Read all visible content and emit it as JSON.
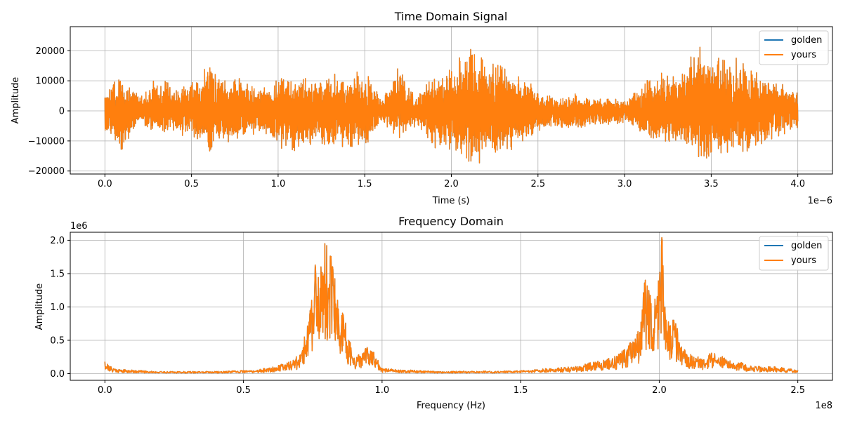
{
  "chart_data": [
    {
      "type": "line",
      "title": "Time Domain Signal",
      "xlabel": "Time (s)",
      "ylabel": "Amplitude",
      "x_offset_label": "1e−6",
      "xlim": [
        -0.2,
        4.2
      ],
      "ylim": [
        -21000,
        28000
      ],
      "grid": true,
      "legend_position": "top-right",
      "xticks": [
        0.0,
        0.5,
        1.0,
        1.5,
        2.0,
        2.5,
        3.0,
        3.5,
        4.0
      ],
      "xtick_labels": [
        "0.0",
        "0.5",
        "1.0",
        "1.5",
        "2.0",
        "2.5",
        "3.0",
        "3.5",
        "4.0"
      ],
      "yticks": [
        -20000,
        -10000,
        0,
        10000,
        20000
      ],
      "ytick_labels": [
        "−20000",
        "−10000",
        "0",
        "10000",
        "20000"
      ],
      "series": [
        {
          "name": "golden",
          "color": "#1f77b4"
        },
        {
          "name": "yours",
          "color": "#ff7f0e"
        }
      ],
      "envelope": {
        "x": [
          0.0,
          0.1,
          0.2,
          0.3,
          0.4,
          0.5,
          0.6,
          0.7,
          0.8,
          0.9,
          1.0,
          1.1,
          1.2,
          1.3,
          1.4,
          1.5,
          1.6,
          1.7,
          1.8,
          1.9,
          2.0,
          2.1,
          2.2,
          2.3,
          2.4,
          2.5,
          2.6,
          2.7,
          2.8,
          2.9,
          3.0,
          3.1,
          3.2,
          3.3,
          3.4,
          3.5,
          3.6,
          3.7,
          3.8,
          3.9,
          4.0
        ],
        "y_max": [
          7000,
          14000,
          5000,
          13000,
          8000,
          12000,
          16000,
          14000,
          12000,
          9000,
          11000,
          14000,
          11000,
          14000,
          12000,
          15000,
          4000,
          17000,
          5000,
          14000,
          14000,
          25500,
          17000,
          16000,
          12000,
          7000,
          5000,
          6000,
          4000,
          5000,
          4000,
          9000,
          14000,
          12000,
          24000,
          18000,
          19000,
          17000,
          12000,
          11000,
          6000
        ],
        "y_min": [
          -8000,
          -14500,
          -4000,
          -9000,
          -7000,
          -11000,
          -14500,
          -12000,
          -10000,
          -8000,
          -13000,
          -16000,
          -12000,
          -14500,
          -13000,
          -15000,
          -4000,
          -10000,
          -5000,
          -13000,
          -15000,
          -19000,
          -17000,
          -14500,
          -12000,
          -8000,
          -6000,
          -7000,
          -5000,
          -5000,
          -4000,
          -9000,
          -11000,
          -12000,
          -15000,
          -18500,
          -14000,
          -15000,
          -12000,
          -9000,
          -6000
        ]
      }
    },
    {
      "type": "line",
      "title": "Frequency Domain",
      "xlabel": "Frequency (Hz)",
      "ylabel": "Amplitude",
      "x_offset_label": "1e8",
      "y_offset_label": "1e6",
      "xlim": [
        -0.125,
        2.625
      ],
      "ylim": [
        -0.1,
        2.12
      ],
      "grid": true,
      "legend_position": "top-right",
      "xticks": [
        0.0,
        0.5,
        1.0,
        1.5,
        2.0,
        2.5
      ],
      "xtick_labels": [
        "0.0",
        "0.5",
        "1.0",
        "1.5",
        "2.0",
        "2.5"
      ],
      "yticks": [
        0.0,
        0.5,
        1.0,
        1.5,
        2.0
      ],
      "ytick_labels": [
        "0.0",
        "0.5",
        "1.0",
        "1.5",
        "2.0"
      ],
      "series": [
        {
          "name": "golden",
          "color": "#1f77b4"
        },
        {
          "name": "yours",
          "color": "#ff7f0e"
        }
      ],
      "peaks": {
        "x": [
          0.0,
          0.02,
          0.05,
          0.2,
          0.4,
          0.55,
          0.63,
          0.68,
          0.71,
          0.72,
          0.74,
          0.76,
          0.78,
          0.8,
          0.82,
          0.84,
          0.86,
          0.88,
          0.9,
          0.94,
          0.97,
          1.0,
          1.2,
          1.5,
          1.7,
          1.8,
          1.85,
          1.9,
          1.93,
          1.95,
          1.97,
          1.99,
          2.01,
          2.02,
          2.04,
          2.06,
          2.08,
          2.1,
          2.15,
          2.2,
          2.25,
          2.3,
          2.35,
          2.4,
          2.45,
          2.5
        ],
        "y": [
          0.18,
          0.1,
          0.06,
          0.03,
          0.03,
          0.05,
          0.12,
          0.2,
          0.3,
          0.55,
          0.95,
          1.58,
          1.6,
          1.92,
          1.55,
          1.1,
          0.88,
          0.5,
          0.2,
          0.37,
          0.32,
          0.07,
          0.03,
          0.04,
          0.1,
          0.2,
          0.25,
          0.45,
          0.62,
          1.4,
          1.05,
          1.02,
          2.04,
          1.0,
          0.72,
          0.75,
          0.4,
          0.28,
          0.22,
          0.3,
          0.18,
          0.15,
          0.1,
          0.1,
          0.08,
          0.05
        ]
      }
    }
  ]
}
